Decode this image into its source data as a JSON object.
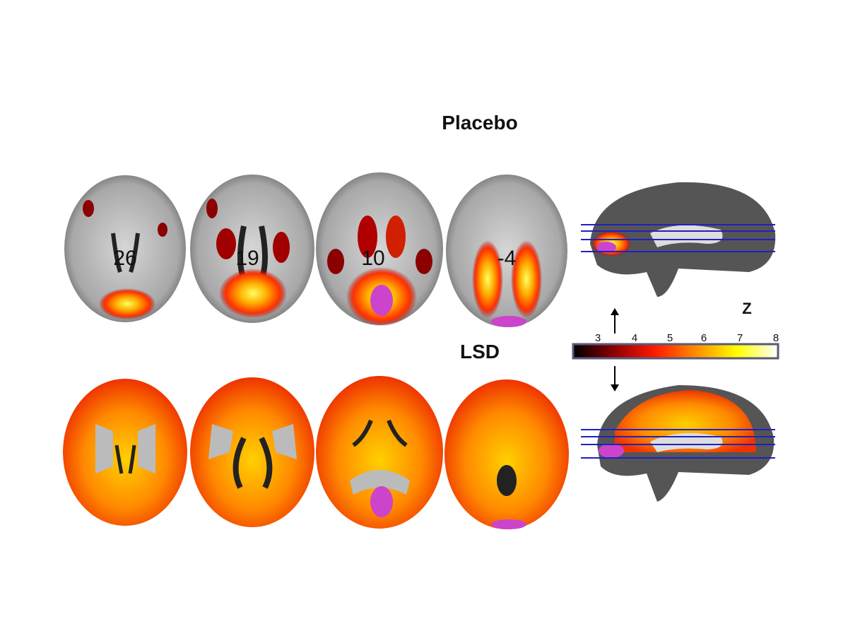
{
  "conditions": {
    "placebo": "Placebo",
    "lsd": "LSD"
  },
  "slices": [
    "26",
    "19",
    "10",
    "-4"
  ],
  "colorbar": {
    "label": "Z",
    "ticks": [
      "3",
      "4",
      "5",
      "6",
      "7",
      "8"
    ],
    "range": [
      3,
      8
    ],
    "colors": [
      "#000000",
      "#8b0000",
      "#ff1a00",
      "#ff8c00",
      "#ffff00",
      "#ffffff"
    ],
    "border_color": "#5a5a78"
  },
  "slice_line_color": "#2020c0",
  "overflow_color": "#cc44cc"
}
